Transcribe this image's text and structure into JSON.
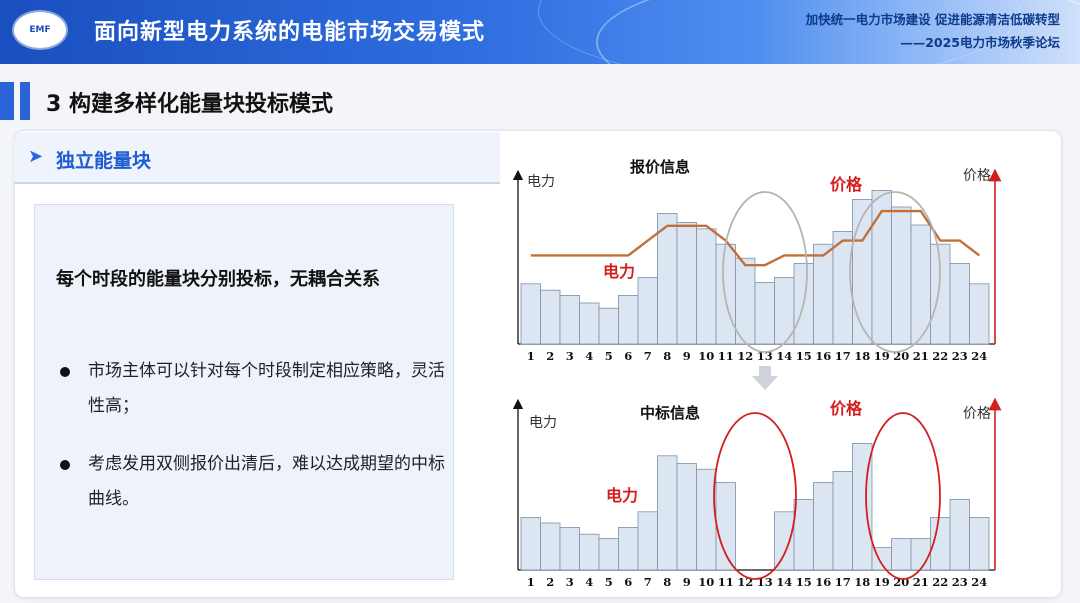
{
  "header": {
    "logo_text": "EMF",
    "title": "面向新型电力系统的电能市场交易模式",
    "slogan_line1": "加快统一电力市场建设 促进能源清洁低碳转型",
    "slogan_line2": "——2025电力市场秋季论坛"
  },
  "section": {
    "title": "3 构建多样化能量块投标模式"
  },
  "subsection": {
    "title": "独立能量块"
  },
  "content": {
    "lead": "每个时段的能量块分别投标，无耦合关系",
    "bullets": [
      "市场主体可以针对每个时段制定相应策略，灵活性高；",
      "考虑发用双侧报价出清后，难以达成期望的中标曲线。"
    ]
  },
  "colors": {
    "bar_fill": "#dce6f2",
    "bar_stroke": "#7f8fa6",
    "price_line": "#c0703a",
    "accent_red": "#d21e1e",
    "ellipse_gray": "#b5b5b5"
  },
  "chart_data": [
    {
      "type": "bar",
      "title": "报价信息",
      "left_axis_label": "电力",
      "right_axis_label": "价格",
      "series_labels": [
        "电力",
        "价格"
      ],
      "categories": [
        "1",
        "2",
        "3",
        "4",
        "5",
        "6",
        "7",
        "8",
        "9",
        "10",
        "11",
        "12",
        "13",
        "14",
        "15",
        "16",
        "17",
        "18",
        "19",
        "20",
        "21",
        "22",
        "23",
        "24"
      ],
      "series": [
        {
          "name": "电力",
          "values": [
            4.7,
            4.2,
            3.8,
            3.2,
            2.8,
            3.8,
            5.2,
            10.2,
            9.5,
            9.0,
            7.8,
            6.7,
            4.8,
            5.2,
            6.3,
            7.8,
            8.8,
            11.3,
            12.0,
            10.7,
            9.3,
            7.8,
            6.3,
            4.7
          ]
        },
        {
          "name": "价格",
          "values": [
            3.6,
            3.6,
            3.6,
            3.6,
            3.6,
            3.6,
            4.2,
            4.8,
            4.8,
            4.8,
            4.2,
            3.2,
            3.2,
            3.6,
            3.6,
            3.6,
            4.2,
            4.2,
            5.4,
            5.4,
            5.4,
            4.2,
            4.2,
            3.6
          ]
        }
      ]
    },
    {
      "type": "bar",
      "title": "中标信息",
      "left_axis_label": "电力",
      "right_axis_label": "价格",
      "series_labels": [
        "电力",
        "价格"
      ],
      "categories": [
        "1",
        "2",
        "3",
        "4",
        "5",
        "6",
        "7",
        "8",
        "9",
        "10",
        "11",
        "12",
        "13",
        "14",
        "15",
        "16",
        "17",
        "18",
        "19",
        "20",
        "21",
        "22",
        "23",
        "24"
      ],
      "series": [
        {
          "name": "电力",
          "values": [
            4.7,
            4.2,
            3.8,
            3.2,
            2.8,
            3.8,
            5.2,
            10.2,
            9.5,
            9.0,
            7.8,
            0,
            0,
            5.2,
            6.3,
            7.8,
            8.8,
            11.3,
            2.0,
            2.8,
            2.8,
            4.7,
            6.3,
            4.7
          ]
        }
      ]
    }
  ]
}
